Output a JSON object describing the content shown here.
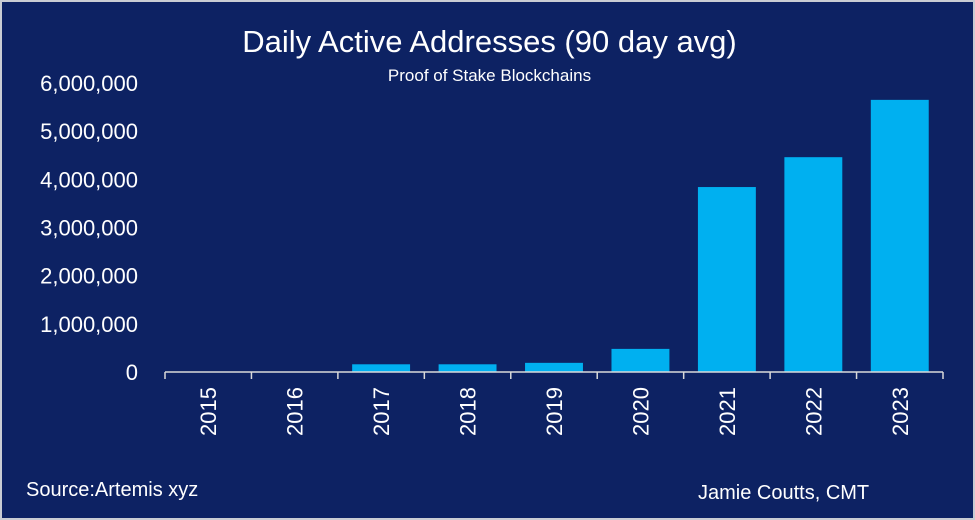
{
  "chart_data": {
    "type": "bar",
    "title": "Daily Active Addresses (90 day avg)",
    "subtitle": "Proof of Stake Blockchains",
    "xlabel": "",
    "ylabel": "",
    "categories": [
      "2015",
      "2016",
      "2017",
      "2018",
      "2019",
      "2020",
      "2021",
      "2022",
      "2023"
    ],
    "values": [
      0,
      0,
      160000,
      160000,
      190000,
      480000,
      3840000,
      4460000,
      5650000
    ],
    "ylim": [
      0,
      6000000
    ],
    "yticks": [
      0,
      1000000,
      2000000,
      3000000,
      4000000,
      5000000,
      6000000
    ],
    "ytick_labels": [
      "0",
      "1,000,000",
      "2,000,000",
      "3,000,000",
      "4,000,000",
      "5,000,000",
      "6,000,000"
    ],
    "grid": false,
    "legend": "none",
    "bar_color": "#00b0f0",
    "background_color": "#0d2263",
    "text_color": "#ffffff"
  },
  "footer": {
    "source": "Source:Artemis xyz",
    "author": "Jamie Coutts, CMT"
  }
}
